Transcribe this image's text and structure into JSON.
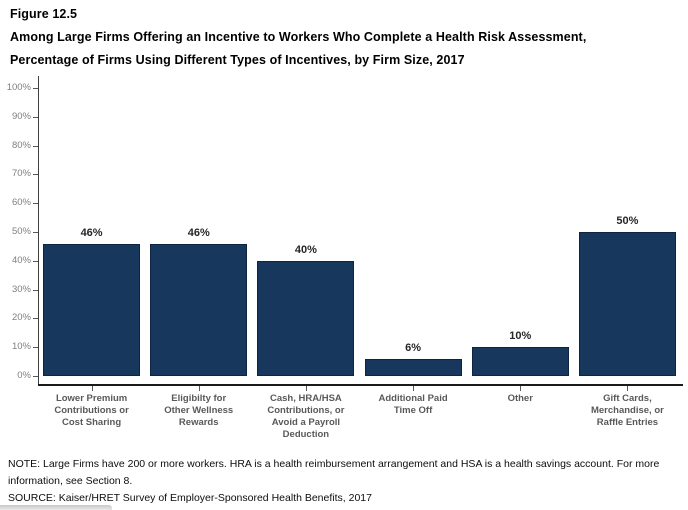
{
  "figure": {
    "label": "Figure 12.5",
    "title_line1": "Among Large Firms Offering an Incentive to Workers Who Complete a Health Risk Assessment,",
    "title_line2": "Percentage of Firms Using Different Types of Incentives, by Firm Size, 2017"
  },
  "chart_data": {
    "type": "bar",
    "title": "Percentage of Firms Using Different Types of Incentives, by Firm Size, 2017",
    "categories": [
      "Lower Premium\nContributions or\nCost Sharing",
      "Eligibilty for\nOther Wellness\nRewards",
      "Cash, HRA/HSA\nContributions, or\nAvoid a Payroll\nDeduction",
      "Additional Paid\nTime Off",
      "Other",
      "Gift Cards,\nMerchandise, or\nRaffle Entries"
    ],
    "values": [
      46,
      46,
      40,
      6,
      10,
      50
    ],
    "value_labels": [
      "46%",
      "46%",
      "40%",
      "6%",
      "10%",
      "50%"
    ],
    "xlabel": "",
    "ylabel": "",
    "ylim": [
      0,
      100
    ],
    "ytick_step": 10,
    "ytick_labels": [
      "0%",
      "10%",
      "20%",
      "30%",
      "40%",
      "50%",
      "60%",
      "70%",
      "80%",
      "90%",
      "100%"
    ],
    "grid": false,
    "legend": "none",
    "bar_color": "#17375D",
    "bar_border_color": "#0E2440"
  },
  "notes": {
    "note": "NOTE: Large Firms have 200 or more workers. HRA is a health reimbursement arrangement and HSA is a health savings account. For more information, see Section 8.",
    "source": "SOURCE: Kaiser/HRET Survey of Employer-Sponsored Health Benefits, 2017"
  }
}
